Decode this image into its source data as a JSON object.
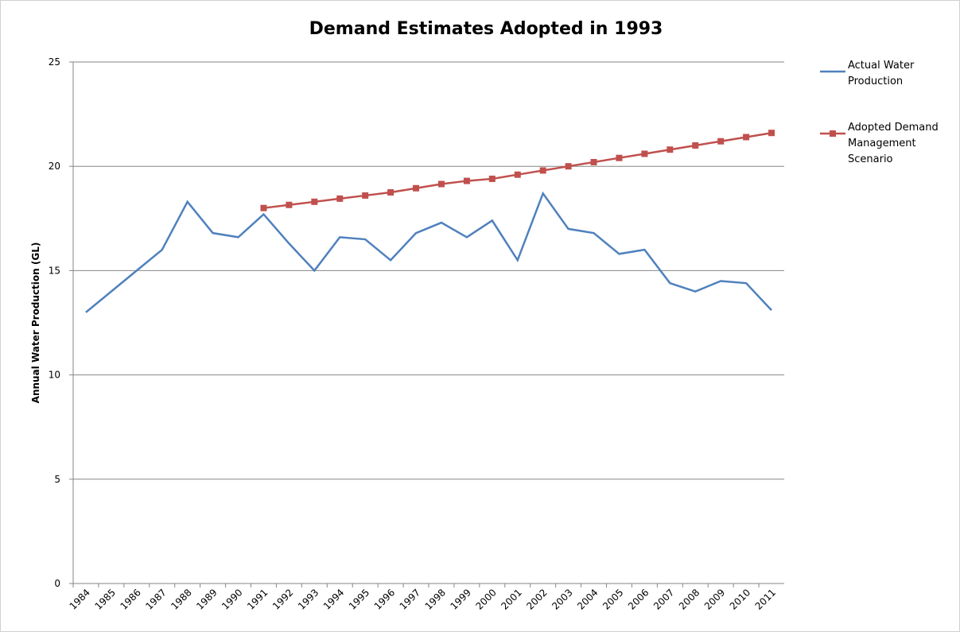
{
  "chart_data": {
    "type": "line",
    "title": "Demand Estimates Adopted in 1993",
    "y_label": "Annual Water Production (GL)",
    "categories": [
      "1984",
      "1985",
      "1986",
      "1987",
      "1988",
      "1989",
      "1990",
      "1991",
      "1992",
      "1993",
      "1994",
      "1995",
      "1996",
      "1997",
      "1998",
      "1999",
      "2000",
      "2001",
      "2002",
      "2003",
      "2004",
      "2005",
      "2006",
      "2007",
      "2008",
      "2009",
      "2010",
      "2011"
    ],
    "series": [
      {
        "name": "Actual Water Production",
        "color": "#4f81bd",
        "marker": "none",
        "values": [
          13.0,
          14.0,
          15.0,
          16.0,
          18.3,
          16.8,
          16.6,
          17.7,
          16.3,
          15.0,
          16.6,
          16.5,
          15.5,
          16.8,
          17.3,
          16.6,
          17.4,
          15.5,
          18.7,
          17.0,
          16.8,
          15.8,
          16.0,
          14.4,
          14.0,
          14.5,
          14.4,
          13.1
        ]
      },
      {
        "name": "Adopted Demand Management Scenario",
        "color": "#c0504d",
        "marker": "square",
        "values": [
          null,
          null,
          null,
          null,
          null,
          null,
          null,
          18.0,
          18.15,
          18.3,
          18.45,
          18.6,
          18.75,
          18.95,
          19.15,
          19.3,
          19.4,
          19.6,
          19.8,
          20.0,
          20.2,
          20.4,
          20.6,
          20.8,
          21.0,
          21.2,
          21.4,
          21.6
        ]
      }
    ],
    "ylim": [
      0,
      25
    ],
    "yticks": [
      0,
      5,
      10,
      15,
      20,
      25
    ],
    "grid": true,
    "legend": "right"
  }
}
